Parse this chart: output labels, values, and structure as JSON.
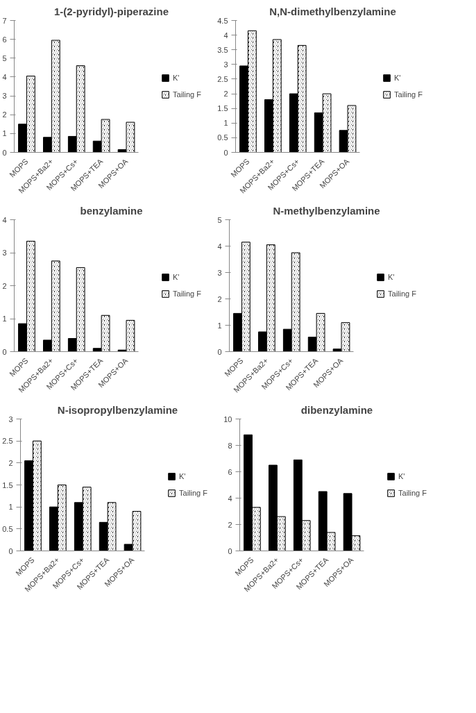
{
  "chart_data": [
    {
      "type": "bar",
      "title": "1-(2-pyridyl)-piperazine",
      "categories": [
        "MOPS",
        "MOPS+Ba2+",
        "MOPS+Cs+",
        "MOPS+TEA",
        "MOPS+OA"
      ],
      "series": [
        {
          "name": "K'",
          "color": "#000000",
          "values": [
            1.5,
            0.8,
            0.85,
            0.6,
            0.15
          ]
        },
        {
          "name": "Tailing F",
          "color": "#000000",
          "values": [
            4.05,
            5.95,
            4.6,
            1.75,
            1.6
          ]
        }
      ],
      "ylim": [
        0,
        7
      ],
      "yticks": [
        0,
        1,
        2,
        3,
        4,
        5,
        6,
        7
      ],
      "grid": false,
      "legend": "right"
    },
    {
      "type": "bar",
      "title": "N,N-dimethylbenzylamine",
      "categories": [
        "MOPS",
        "MOPS+Ba2+",
        "MOPS+Cs+",
        "MOPS+TEA",
        "MOPS+OA"
      ],
      "series": [
        {
          "name": "K'",
          "color": "#000000",
          "values": [
            2.95,
            1.8,
            2.0,
            1.35,
            0.75
          ]
        },
        {
          "name": "Tailing F",
          "color": "#000000",
          "values": [
            4.15,
            3.85,
            3.65,
            2.0,
            1.6
          ]
        }
      ],
      "ylim": [
        0,
        4.5
      ],
      "yticks": [
        0,
        0.5,
        1,
        1.5,
        2,
        2.5,
        3,
        3.5,
        4,
        4.5
      ],
      "grid": false,
      "legend": "right"
    },
    {
      "type": "bar",
      "title": "benzylamine",
      "categories": [
        "MOPS",
        "MOPS+Ba2+",
        "MOPS+Cs+",
        "MOPS+TEA",
        "MOPS+OA"
      ],
      "series": [
        {
          "name": "K'",
          "color": "#000000",
          "values": [
            0.85,
            0.35,
            0.4,
            0.1,
            0.05
          ]
        },
        {
          "name": "Tailing F",
          "color": "#000000",
          "values": [
            3.35,
            2.75,
            2.55,
            1.1,
            0.95
          ]
        }
      ],
      "ylim": [
        0,
        4
      ],
      "yticks": [
        0,
        1,
        2,
        3,
        4
      ],
      "grid": false,
      "legend": "right"
    },
    {
      "type": "bar",
      "title": "N-methylbenzylamine",
      "categories": [
        "MOPS",
        "MOPS+Ba2+",
        "MOPS+Cs+",
        "MOPS+TEA",
        "MOPS+OA"
      ],
      "series": [
        {
          "name": "K'",
          "color": "#000000",
          "values": [
            1.45,
            0.75,
            0.85,
            0.55,
            0.1
          ]
        },
        {
          "name": "Tailing F",
          "color": "#000000",
          "values": [
            4.15,
            4.05,
            3.75,
            1.45,
            1.1
          ]
        }
      ],
      "ylim": [
        0,
        5
      ],
      "yticks": [
        0,
        1,
        2,
        3,
        4,
        5
      ],
      "grid": false,
      "legend": "right"
    },
    {
      "type": "bar",
      "title": "N-isopropylbenzylamine",
      "categories": [
        "MOPS",
        "MOPS+Ba2+",
        "MOPS+Cs+",
        "MOPS+TEA",
        "MOPS+OA"
      ],
      "series": [
        {
          "name": "K'",
          "color": "#000000",
          "values": [
            2.05,
            1.0,
            1.1,
            0.65,
            0.15
          ]
        },
        {
          "name": "Tailing F",
          "color": "#000000",
          "values": [
            2.5,
            1.5,
            1.45,
            1.1,
            0.9
          ]
        }
      ],
      "ylim": [
        0,
        3
      ],
      "yticks": [
        0,
        0.5,
        1,
        1.5,
        2,
        2.5,
        3
      ],
      "grid": false,
      "legend": "right"
    },
    {
      "type": "bar",
      "title": "dibenzylamine",
      "categories": [
        "MOPS",
        "MOPS+Ba2+",
        "MOPS+Cs+",
        "MOPS+TEA",
        "MOPS+OA"
      ],
      "series": [
        {
          "name": "K'",
          "color": "#000000",
          "values": [
            8.8,
            6.5,
            6.9,
            4.5,
            4.35
          ]
        },
        {
          "name": "Tailing F",
          "color": "#000000",
          "values": [
            3.3,
            2.6,
            2.3,
            1.4,
            1.15
          ]
        }
      ],
      "ylim": [
        0,
        10
      ],
      "yticks": [
        0,
        2,
        4,
        6,
        8,
        10
      ],
      "grid": false,
      "legend": "right"
    }
  ]
}
